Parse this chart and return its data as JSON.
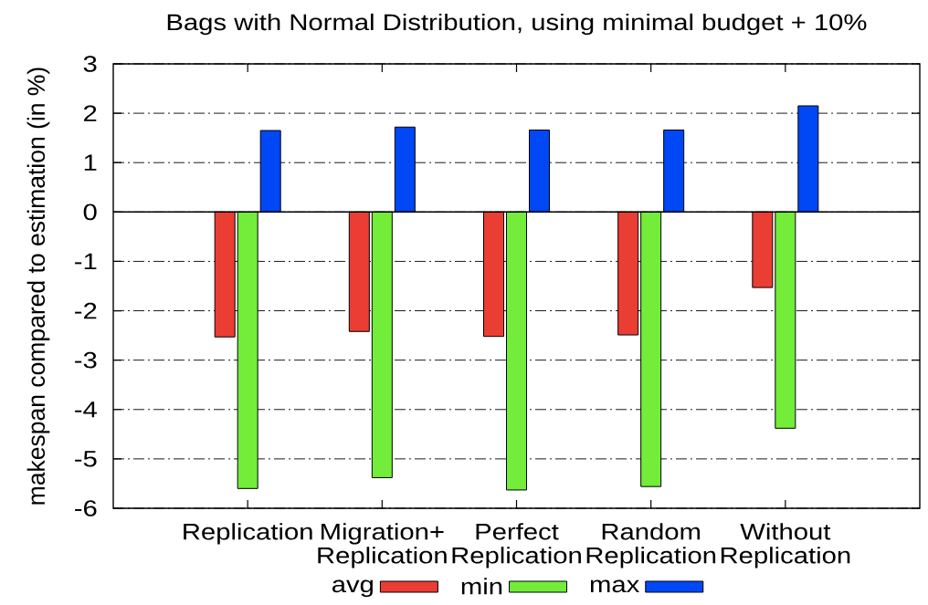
{
  "chart_data": {
    "type": "bar",
    "title": "Bags with Normal Distribution, using minimal budget + 10%",
    "ylabel": "makespan compared to estimation (in %)",
    "categories": [
      "Replication",
      "Migration+ Replication",
      "Perfect Replication",
      "Random Replication",
      "Without Replication"
    ],
    "series": [
      {
        "name": "avg",
        "color": "#ea3d34",
        "values": [
          -2.53,
          -2.42,
          -2.52,
          -2.49,
          -1.53
        ]
      },
      {
        "name": "min",
        "color": "#73ec3a",
        "values": [
          -5.6,
          -5.38,
          -5.63,
          -5.56,
          -4.38
        ]
      },
      {
        "name": "max",
        "color": "#0047f5",
        "values": [
          1.65,
          1.72,
          1.66,
          1.66,
          2.15
        ]
      }
    ],
    "ylim": [
      -6,
      3
    ],
    "yticks": [
      -6,
      -5,
      -4,
      -3,
      -2,
      -1,
      0,
      1,
      2,
      3
    ],
    "grid": "y",
    "legend": "bottom",
    "ref_lines": [
      {
        "axis": "y",
        "value": 0,
        "color": "#000000",
        "line_style": "solid"
      }
    ]
  }
}
